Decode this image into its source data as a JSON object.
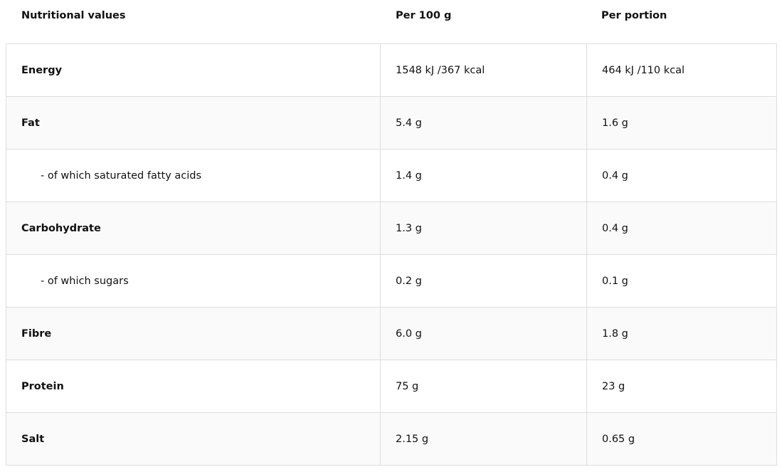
{
  "header": {
    "nutrient": "Nutritional values",
    "per100": "Per 100 g",
    "portion": "Per portion"
  },
  "rows": [
    {
      "name": "Energy",
      "per100": "1548 kJ /367 kcal",
      "portion": "464 kJ /110 kcal",
      "sub": false
    },
    {
      "name": "Fat",
      "per100": "5.4 g",
      "portion": "1.6 g",
      "sub": false
    },
    {
      "name": "- of which saturated fatty acids",
      "per100": "1.4 g",
      "portion": "0.4 g",
      "sub": true
    },
    {
      "name": "Carbohydrate",
      "per100": "1.3 g",
      "portion": "0.4 g",
      "sub": false
    },
    {
      "name": "- of which sugars",
      "per100": "0.2 g",
      "portion": "0.1 g",
      "sub": true
    },
    {
      "name": "Fibre",
      "per100": "6.0 g",
      "portion": "1.8 g",
      "sub": false
    },
    {
      "name": "Protein",
      "per100": "75 g",
      "portion": "23 g",
      "sub": false
    },
    {
      "name": "Salt",
      "per100": "2.15 g",
      "portion": "0.65 g",
      "sub": false
    }
  ]
}
